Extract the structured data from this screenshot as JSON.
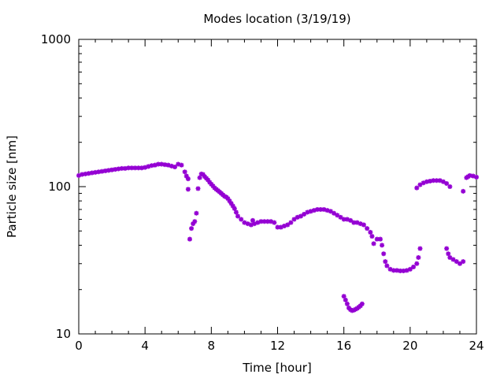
{
  "chart_data": {
    "type": "scatter",
    "title": "Modes location (3/19/19)",
    "xlabel": "Time [hour]",
    "ylabel": "Particle size [nm]",
    "xlim": [
      0,
      24
    ],
    "ylim": [
      10,
      1000
    ],
    "y_scale": "log",
    "x_ticks": [
      0,
      4,
      8,
      12,
      16,
      20,
      24
    ],
    "x_tick_labels": [
      "0",
      "4",
      "8",
      "12",
      "16",
      "20",
      "24"
    ],
    "y_ticks": [
      10,
      100,
      1000
    ],
    "y_tick_labels": [
      "10",
      "100",
      "1000"
    ],
    "grid": false,
    "legend": "none",
    "marker_color": "#9400D3",
    "series": [
      {
        "points": [
          [
            0.0,
            119
          ],
          [
            0.2,
            121
          ],
          [
            0.4,
            122
          ],
          [
            0.6,
            123
          ],
          [
            0.8,
            124
          ],
          [
            1.0,
            125
          ],
          [
            1.2,
            126
          ],
          [
            1.4,
            127
          ],
          [
            1.6,
            128
          ],
          [
            1.8,
            129
          ],
          [
            2.0,
            130
          ],
          [
            2.2,
            131
          ],
          [
            2.4,
            132
          ],
          [
            2.6,
            133
          ],
          [
            2.8,
            133
          ],
          [
            3.0,
            134
          ],
          [
            3.2,
            134
          ],
          [
            3.4,
            134
          ],
          [
            3.6,
            134
          ],
          [
            3.8,
            134
          ],
          [
            4.0,
            135
          ],
          [
            4.2,
            137
          ],
          [
            4.4,
            139
          ],
          [
            4.6,
            140
          ],
          [
            4.8,
            142
          ],
          [
            5.0,
            142
          ],
          [
            5.2,
            141
          ],
          [
            5.4,
            140
          ],
          [
            5.6,
            138
          ],
          [
            5.8,
            136
          ],
          [
            6.0,
            142
          ],
          [
            6.2,
            140
          ],
          [
            6.4,
            126
          ],
          [
            6.5,
            118
          ],
          [
            6.6,
            113
          ],
          [
            6.6,
            96
          ],
          [
            6.7,
            44
          ],
          [
            6.8,
            52
          ],
          [
            6.9,
            56
          ],
          [
            7.0,
            58
          ],
          [
            7.1,
            66
          ],
          [
            7.2,
            97
          ],
          [
            7.3,
            115
          ],
          [
            7.4,
            122
          ],
          [
            7.5,
            121
          ],
          [
            7.6,
            117
          ],
          [
            7.7,
            114
          ],
          [
            7.8,
            111
          ],
          [
            7.9,
            107
          ],
          [
            8.0,
            104
          ],
          [
            8.1,
            101
          ],
          [
            8.2,
            98
          ],
          [
            8.3,
            96
          ],
          [
            8.4,
            94
          ],
          [
            8.5,
            92
          ],
          [
            8.6,
            90
          ],
          [
            8.7,
            88
          ],
          [
            8.8,
            86
          ],
          [
            8.9,
            85
          ],
          [
            9.0,
            83
          ],
          [
            9.1,
            80
          ],
          [
            9.2,
            77
          ],
          [
            9.3,
            74
          ],
          [
            9.4,
            71
          ],
          [
            9.5,
            67
          ],
          [
            9.6,
            63
          ],
          [
            9.8,
            60
          ],
          [
            10.0,
            57
          ],
          [
            10.2,
            56
          ],
          [
            10.4,
            55
          ],
          [
            10.5,
            59
          ],
          [
            10.6,
            56
          ],
          [
            10.8,
            57
          ],
          [
            11.0,
            58
          ],
          [
            11.2,
            58
          ],
          [
            11.4,
            58
          ],
          [
            11.6,
            58
          ],
          [
            11.8,
            57
          ],
          [
            12.0,
            53
          ],
          [
            12.2,
            53
          ],
          [
            12.4,
            54
          ],
          [
            12.6,
            55
          ],
          [
            12.8,
            57
          ],
          [
            13.0,
            60
          ],
          [
            13.2,
            62
          ],
          [
            13.4,
            63
          ],
          [
            13.6,
            65
          ],
          [
            13.8,
            67
          ],
          [
            14.0,
            68
          ],
          [
            14.2,
            69
          ],
          [
            14.4,
            70
          ],
          [
            14.6,
            70
          ],
          [
            14.8,
            70
          ],
          [
            15.0,
            69
          ],
          [
            15.2,
            68
          ],
          [
            15.4,
            66
          ],
          [
            15.6,
            64
          ],
          [
            15.8,
            62
          ],
          [
            16.0,
            60
          ],
          [
            16.2,
            60
          ],
          [
            16.4,
            59
          ],
          [
            16.6,
            57
          ],
          [
            16.8,
            57
          ],
          [
            17.0,
            56
          ],
          [
            17.2,
            55
          ],
          [
            17.4,
            52
          ],
          [
            17.6,
            49
          ],
          [
            17.7,
            46
          ],
          [
            17.8,
            41
          ],
          [
            16.0,
            18
          ],
          [
            16.1,
            17
          ],
          [
            16.2,
            16
          ],
          [
            16.3,
            15
          ],
          [
            16.4,
            14.6
          ],
          [
            16.5,
            14.4
          ],
          [
            16.6,
            14.5
          ],
          [
            16.7,
            14.7
          ],
          [
            16.8,
            14.9
          ],
          [
            16.9,
            15.2
          ],
          [
            17.0,
            15.5
          ],
          [
            17.1,
            16
          ],
          [
            18.0,
            44
          ],
          [
            18.2,
            44
          ],
          [
            18.3,
            40
          ],
          [
            18.4,
            35
          ],
          [
            18.5,
            31
          ],
          [
            18.6,
            29
          ],
          [
            18.8,
            27.5
          ],
          [
            19.0,
            27
          ],
          [
            19.2,
            27
          ],
          [
            19.4,
            26.8
          ],
          [
            19.6,
            26.8
          ],
          [
            19.8,
            27
          ],
          [
            20.0,
            27.5
          ],
          [
            20.2,
            28.5
          ],
          [
            20.4,
            30
          ],
          [
            20.5,
            33
          ],
          [
            20.6,
            38
          ],
          [
            20.4,
            98
          ],
          [
            20.6,
            103
          ],
          [
            20.8,
            106
          ],
          [
            21.0,
            108
          ],
          [
            21.2,
            109
          ],
          [
            21.4,
            110
          ],
          [
            21.6,
            110
          ],
          [
            21.8,
            110
          ],
          [
            22.0,
            108
          ],
          [
            22.2,
            105
          ],
          [
            22.4,
            100
          ],
          [
            22.2,
            38
          ],
          [
            22.3,
            35
          ],
          [
            22.4,
            33
          ],
          [
            22.6,
            32
          ],
          [
            22.8,
            31
          ],
          [
            23.0,
            30
          ],
          [
            23.2,
            31
          ],
          [
            23.2,
            93
          ],
          [
            23.4,
            115
          ],
          [
            23.5,
            117
          ],
          [
            23.6,
            119
          ],
          [
            23.8,
            118
          ],
          [
            24.0,
            116
          ]
        ]
      }
    ]
  }
}
